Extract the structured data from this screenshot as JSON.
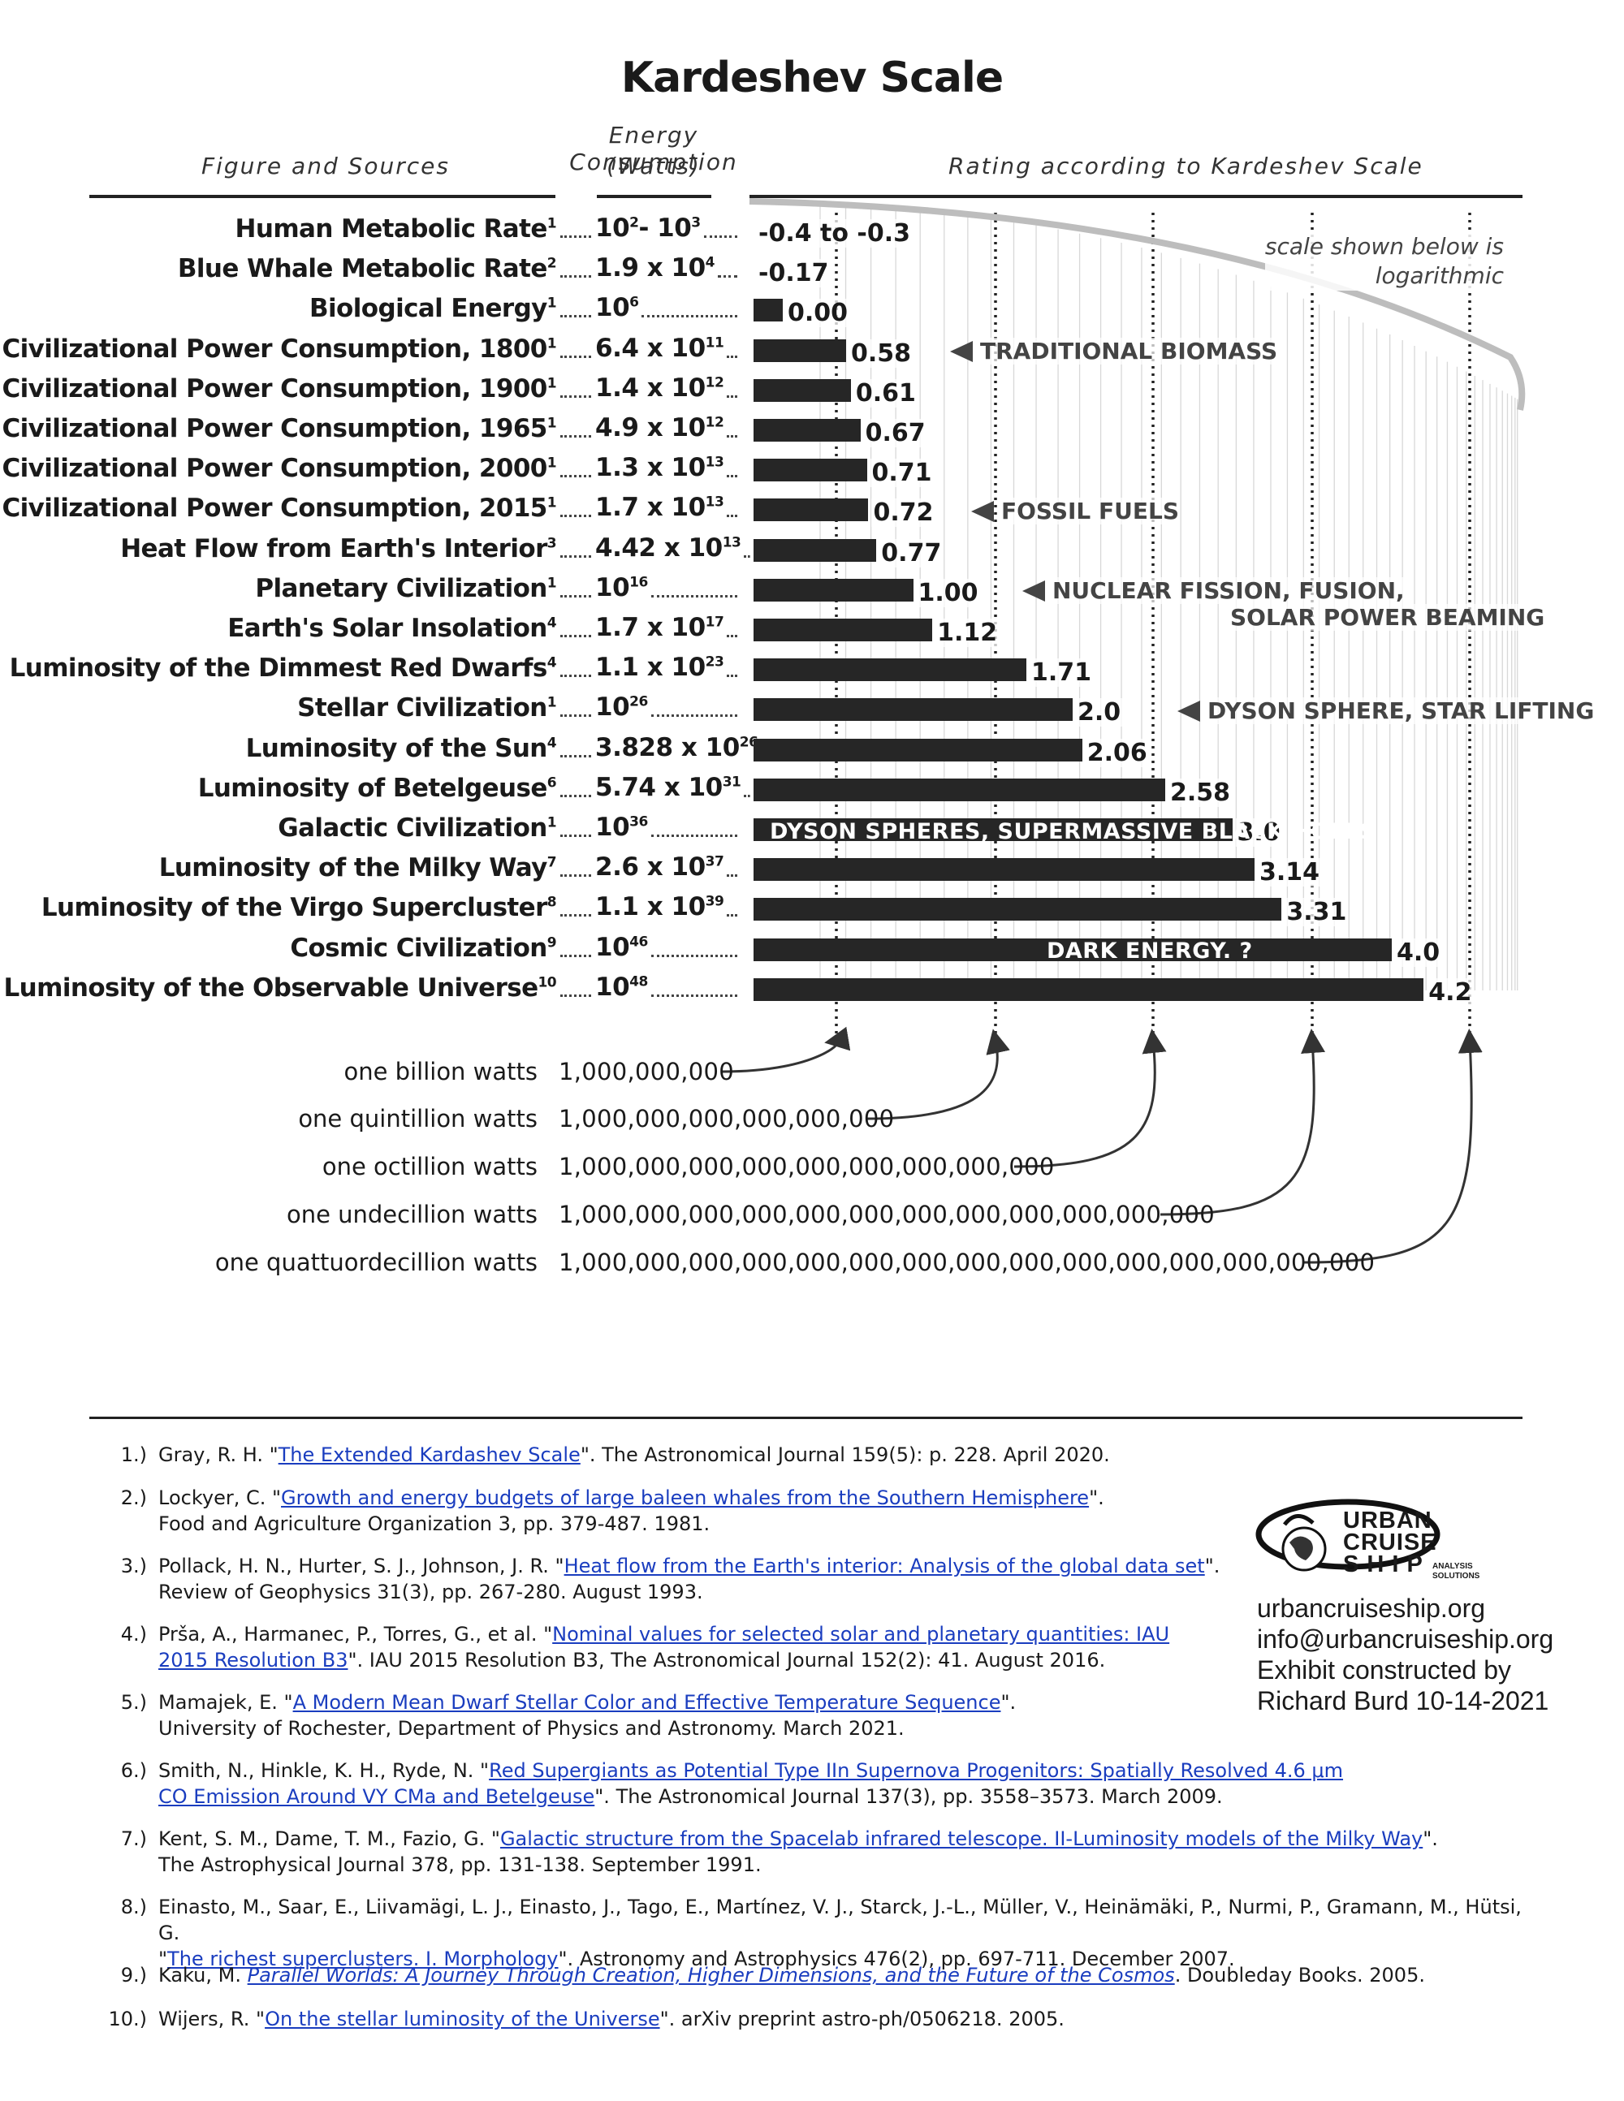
{
  "title": "Kardeshev Scale",
  "headers": {
    "figure": "Figure and Sources",
    "energy_line1": "Energy Consumption",
    "energy_line2": "(Watts)",
    "rating": "Rating according to Kardeshev Scale"
  },
  "scale_note": [
    "scale shown below is",
    "logarithmic"
  ],
  "rows": [
    {
      "label": "Human Metabolic Rate",
      "sup": "1",
      "energy_html": "10<sup>2</sup>- 10<sup>3</sup>",
      "rating_text": "-0.4 to -0.3",
      "value": -0.35
    },
    {
      "label": "Blue Whale Metabolic Rate",
      "sup": "2",
      "energy_html": "1.9 x 10<sup>4</sup>",
      "rating_text": "-0.17",
      "value": -0.17
    },
    {
      "label": "Biological Energy",
      "sup": "1",
      "energy_html": "10<sup>6</sup>",
      "rating_text": "0.00",
      "value": 0.0
    },
    {
      "label": "Civilizational Power Consumption, 1800",
      "sup": "1",
      "energy_html": "6.4 x 10<sup>11</sup>",
      "rating_text": "0.58",
      "value": 0.58
    },
    {
      "label": "Civilizational Power Consumption, 1900",
      "sup": "1",
      "energy_html": "1.4 x 10<sup>12</sup>",
      "rating_text": "0.61",
      "value": 0.61
    },
    {
      "label": "Civilizational Power Consumption, 1965",
      "sup": "1",
      "energy_html": "4.9 x 10<sup>12</sup>",
      "rating_text": "0.67",
      "value": 0.67
    },
    {
      "label": "Civilizational Power Consumption, 2000",
      "sup": "1",
      "energy_html": "1.3 x 10<sup>13</sup>",
      "rating_text": "0.71",
      "value": 0.71
    },
    {
      "label": "Civilizational Power Consumption, 2015",
      "sup": "1",
      "energy_html": "1.7 x 10<sup>13</sup>",
      "rating_text": "0.72",
      "value": 0.72
    },
    {
      "label": "Heat Flow from Earth's Interior",
      "sup": "3",
      "energy_html": "4.42 x 10<sup>13</sup>",
      "rating_text": "0.77",
      "value": 0.77
    },
    {
      "label": "Planetary Civilization",
      "sup": "1",
      "energy_html": "10<sup>16</sup>",
      "rating_text": "1.00",
      "value": 1.0
    },
    {
      "label": "Earth's Solar Insolation",
      "sup": "4",
      "energy_html": "1.7 x 10<sup>17</sup>",
      "rating_text": "1.12",
      "value": 1.12
    },
    {
      "label": "Luminosity of the Dimmest Red Dwarfs",
      "sup": "4",
      "energy_html": "1.1 x 10<sup>23</sup>",
      "rating_text": "1.71",
      "value": 1.71
    },
    {
      "label": "Stellar Civilization",
      "sup": "1",
      "energy_html": "10<sup>26</sup>",
      "rating_text": "2.0",
      "value": 2.0
    },
    {
      "label": "Luminosity of the Sun",
      "sup": "4",
      "energy_html": "3.828 x 10<sup>26</sup>",
      "rating_text": "2.06",
      "value": 2.06
    },
    {
      "label": "Luminosity of Betelgeuse",
      "sup": "6",
      "energy_html": "5.74 x 10<sup>31</sup>",
      "rating_text": "2.58",
      "value": 2.58
    },
    {
      "label": "Galactic Civilization",
      "sup": "1",
      "energy_html": "10<sup>36</sup>",
      "rating_text": "3.0",
      "value": 3.0
    },
    {
      "label": "Luminosity of the Milky Way",
      "sup": "7",
      "energy_html": "2.6 x 10<sup>37</sup>",
      "rating_text": "3.14",
      "value": 3.14
    },
    {
      "label": "Luminosity of the Virgo Supercluster",
      "sup": "8",
      "energy_html": "1.1 x 10<sup>39</sup>",
      "rating_text": "3.31",
      "value": 3.31
    },
    {
      "label": "Cosmic Civilization",
      "sup": "9",
      "energy_html": "10<sup>46</sup>",
      "rating_text": "4.0",
      "value": 4.0
    },
    {
      "label": "Luminosity of the Observable Universe",
      "sup": "10",
      "energy_html": "10<sup>48</sup>",
      "rating_text": "4.2",
      "value": 4.2
    }
  ],
  "annotations": {
    "traditional": "TRADITIONAL BIOMASS",
    "fossil": "FOSSIL FUELS",
    "fission_1": "NUCLEAR FISSION, FUSION,",
    "fission_2": "SOLAR POWER BEAMING",
    "dyson": "DYSON SPHERE, STAR LIFTING",
    "galactic_bar": "DYSON SPHERES, SUPERMASSIVE BLACK HOLES",
    "cosmic_bar": "DARK ENERGY. ?"
  },
  "watts": [
    {
      "name": "one billion watts",
      "number": "1,000,000,000"
    },
    {
      "name": "one quintillion watts",
      "number": "1,000,000,000,000,000,000"
    },
    {
      "name": "one octillion watts",
      "number": "1,000,000,000,000,000,000,000,000,000"
    },
    {
      "name": "one undecillion watts",
      "number": "1,000,000,000,000,000,000,000,000,000,000,000,000"
    },
    {
      "name": "one quattuordecillion watts",
      "number": "1,000,000,000,000,000,000,000,000,000,000,000,000,000,000,000"
    }
  ],
  "references": [
    {
      "num": "1.)",
      "html": "Gray, R. H. \"<span class='lnk'>The Extended Kardashev Scale</span>\". The Astronomical Journal 159(5): p. 228. April 2020."
    },
    {
      "num": "2.)",
      "html": "Lockyer, C. \"<span class='lnk'>Growth and energy budgets of large baleen whales from the Southern Hemisphere</span>\".<br>Food and Agriculture Organization 3, pp. 379-487. 1981."
    },
    {
      "num": "3.)",
      "html": "Pollack, H. N., Hurter, S. J., Johnson, J. R. \"<span class='lnk'>Heat flow from the Earth's interior: Analysis of the global data set</span>\".<br>Review of Geophysics 31(3), pp. 267-280. August 1993."
    },
    {
      "num": "4.)",
      "html": "Prša, A., Harmanec, P., Torres, G., et al. \"<span class='lnk'>Nominal values for selected solar and planetary quantities: IAU<br>2015 Resolution B3</span>\". IAU 2015 Resolution B3, The Astronomical Journal 152(2): 41. August 2016."
    },
    {
      "num": "5.)",
      "html": "Mamajek, E. \"<span class='lnk'>A Modern Mean Dwarf Stellar Color and Effective Temperature Sequence</span>\".<br>University of Rochester, Department of Physics and Astronomy. March 2021."
    },
    {
      "num": "6.)",
      "html": "Smith, N., Hinkle, K. H., Ryde, N. \"<span class='lnk'>Red Supergiants as Potential Type IIn Supernova Progenitors: Spatially Resolved 4.6 μm<br>CO Emission Around VY CMa and Betelgeuse</span>\". The Astronomical Journal 137(3), pp. 3558–3573. March 2009."
    },
    {
      "num": "7.)",
      "html": "Kent, S. M., Dame, T. M., Fazio, G. \"<span class='lnk'>Galactic structure from the Spacelab infrared telescope. II-Luminosity models of the Milky Way</span>\".<br>The Astrophysical Journal 378, pp. 131-138. September 1991."
    },
    {
      "num": "8.)",
      "html": "Einasto, M., Saar, E., Liivamägi, L. J., Einasto, J., Tago, E., Martínez, V. J., Starck, J.-L., Müller, V., Heinämäki, P., Nurmi, P., Gramann, M., Hütsi, G.<br>\"<span class='lnk'>The richest superclusters. I. Morphology</span>\". Astronomy and Astrophysics 476(2), pp. 697-711. December 2007."
    },
    {
      "num": "9.)",
      "html": "Kaku, M. <span class='lnk' style='font-style:italic'>Parallel Worlds: A Journey Through Creation, Higher Dimensions, and the Future of the Cosmos</span>. Doubleday Books. 2005."
    },
    {
      "num": "10.)",
      "html": "Wijers, R. \"<span class='lnk'>On the stellar luminosity of the Universe</span>\". arXiv preprint astro-ph/0506218. 2005."
    }
  ],
  "logo": {
    "line1": "URBAN",
    "line2": "CRUISE",
    "line3": "S H I P",
    "sub1": "ANALYSIS",
    "sub2": "SOLUTIONS"
  },
  "contact": [
    "urbancruiseship.org",
    "info@urbancruiseship.org",
    "Exhibit constructed by",
    "Richard Burd 10-14-2021"
  ],
  "chart_data": {
    "type": "bar",
    "title": "Kardeshev Scale",
    "xlabel": "Rating according to Kardeshev Scale",
    "categories": [
      "Human Metabolic Rate",
      "Blue Whale Metabolic Rate",
      "Biological Energy",
      "Civilizational Power Consumption, 1800",
      "Civilizational Power Consumption, 1900",
      "Civilizational Power Consumption, 1965",
      "Civilizational Power Consumption, 2000",
      "Civilizational Power Consumption, 2015",
      "Heat Flow from Earth's Interior",
      "Planetary Civilization",
      "Earth's Solar Insolation",
      "Luminosity of the Dimmest Red Dwarfs",
      "Stellar Civilization",
      "Luminosity of the Sun",
      "Luminosity of Betelgeuse",
      "Galactic Civilization",
      "Luminosity of the Milky Way",
      "Luminosity of the Virgo Supercluster",
      "Cosmic Civilization",
      "Luminosity of the Observable Universe"
    ],
    "values": [
      -0.35,
      -0.17,
      0.0,
      0.58,
      0.61,
      0.67,
      0.71,
      0.72,
      0.77,
      1.0,
      1.12,
      1.71,
      2.0,
      2.06,
      2.58,
      3.0,
      3.14,
      3.31,
      4.0,
      4.2
    ],
    "xlim": [
      -0.5,
      4.2
    ],
    "orientation": "horizontal"
  }
}
